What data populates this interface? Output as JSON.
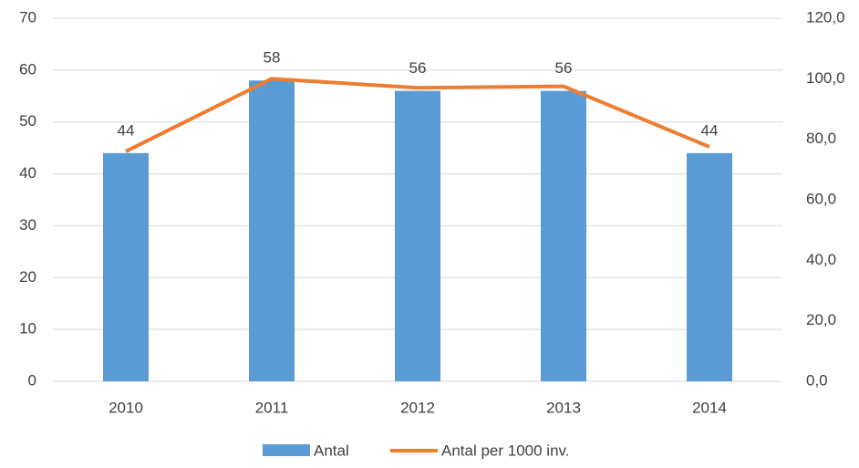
{
  "chart_data": {
    "type": "bar",
    "categories": [
      "2010",
      "2011",
      "2012",
      "2013",
      "2014"
    ],
    "series": [
      {
        "name": "Antal",
        "color": "#5b9bd5",
        "type": "bar",
        "values": [
          44,
          58,
          56,
          56,
          44
        ]
      },
      {
        "name": "Antal per 1000 inv.",
        "color": "#ed7d31",
        "type": "line",
        "axis": "y2",
        "values": [
          76,
          100,
          97,
          97.5,
          77.5
        ]
      }
    ],
    "ylim": [
      0,
      70
    ],
    "yticks": [
      0,
      10,
      20,
      30,
      40,
      50,
      60,
      70
    ],
    "y2lim": [
      0,
      120
    ],
    "y2ticks": [
      {
        "value": 0,
        "label": "0,0"
      },
      {
        "value": 20,
        "label": "20,0"
      },
      {
        "value": 40,
        "label": "40,0"
      },
      {
        "value": 60,
        "label": "60,0"
      },
      {
        "value": 80,
        "label": "80,0"
      },
      {
        "value": 100,
        "label": "100,0"
      },
      {
        "value": 120,
        "label": "120,0"
      }
    ],
    "grid": true,
    "legend": "bottom"
  }
}
